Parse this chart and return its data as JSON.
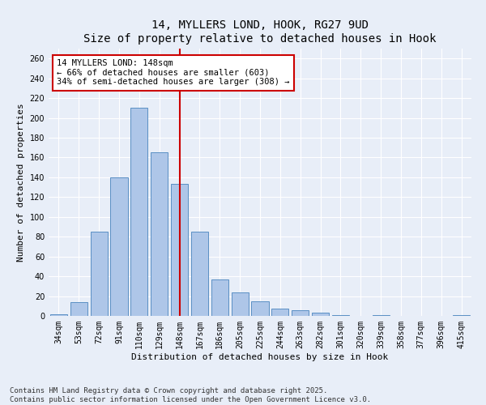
{
  "title": "14, MYLLERS LOND, HOOK, RG27 9UD",
  "subtitle": "Size of property relative to detached houses in Hook",
  "xlabel": "Distribution of detached houses by size in Hook",
  "ylabel": "Number of detached properties",
  "categories": [
    "34sqm",
    "53sqm",
    "72sqm",
    "91sqm",
    "110sqm",
    "129sqm",
    "148sqm",
    "167sqm",
    "186sqm",
    "205sqm",
    "225sqm",
    "244sqm",
    "263sqm",
    "282sqm",
    "301sqm",
    "320sqm",
    "339sqm",
    "358sqm",
    "377sqm",
    "396sqm",
    "415sqm"
  ],
  "values": [
    2,
    14,
    85,
    140,
    210,
    165,
    133,
    85,
    37,
    24,
    15,
    7,
    6,
    3,
    1,
    0,
    1,
    0,
    0,
    0,
    1
  ],
  "bar_color": "#aec6e8",
  "bar_edge_color": "#5a8fc4",
  "vline_x_index": 6,
  "vline_color": "#cc0000",
  "annotation_line1": "14 MYLLERS LOND: 148sqm",
  "annotation_line2": "← 66% of detached houses are smaller (603)",
  "annotation_line3": "34% of semi-detached houses are larger (308) →",
  "annotation_box_color": "#cc0000",
  "ylim": [
    0,
    270
  ],
  "yticks": [
    0,
    20,
    40,
    60,
    80,
    100,
    120,
    140,
    160,
    180,
    200,
    220,
    240,
    260
  ],
  "background_color": "#e8eef8",
  "grid_color": "#ffffff",
  "footer_line1": "Contains HM Land Registry data © Crown copyright and database right 2025.",
  "footer_line2": "Contains public sector information licensed under the Open Government Licence v3.0.",
  "title_fontsize": 10,
  "axis_label_fontsize": 8,
  "tick_fontsize": 7,
  "annotation_fontsize": 7.5,
  "footer_fontsize": 6.5
}
